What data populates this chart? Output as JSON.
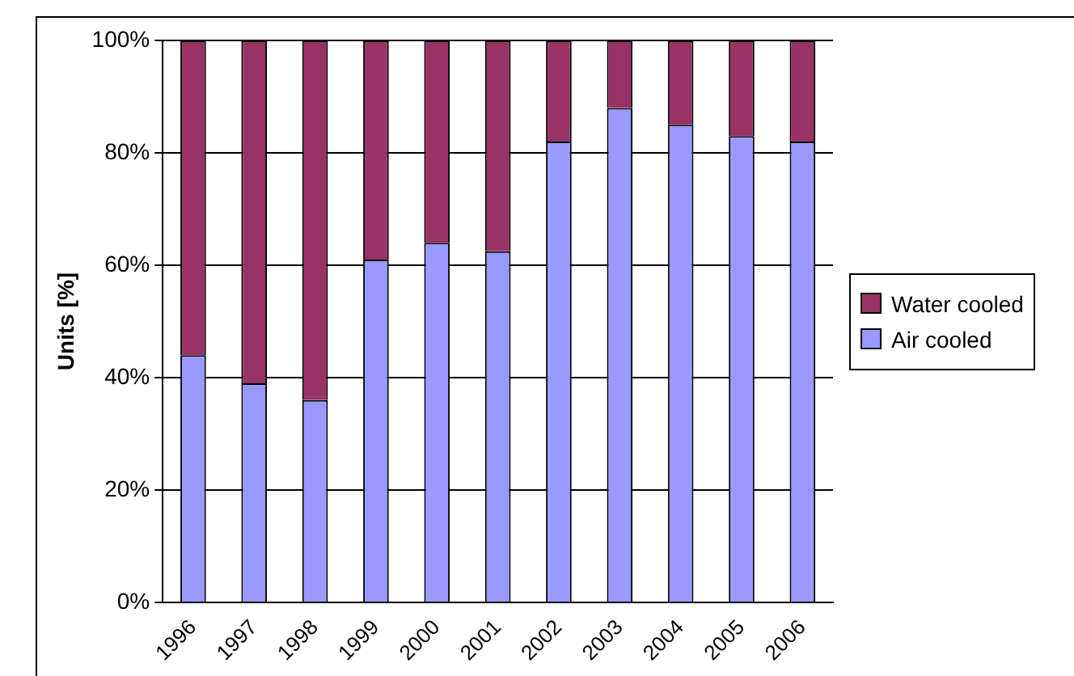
{
  "chart_data": {
    "type": "bar",
    "stacked": true,
    "ylabel": "Units [%]",
    "categories": [
      "1996",
      "1997",
      "1998",
      "1999",
      "2000",
      "2001",
      "2002",
      "2003",
      "2004",
      "2005",
      "2006"
    ],
    "series": [
      {
        "name": "Air cooled",
        "color": "#9999ff",
        "values": [
          44,
          39,
          36,
          61,
          64,
          62.5,
          82,
          88,
          85,
          83,
          82
        ]
      },
      {
        "name": "Water cooled",
        "color": "#993366",
        "values": [
          56,
          61,
          64,
          39,
          36,
          37.5,
          18,
          12,
          15,
          17,
          18
        ]
      }
    ],
    "ylim": [
      0,
      100
    ],
    "yticks": [
      {
        "value": 0,
        "label": "0%"
      },
      {
        "value": 20,
        "label": "20%"
      },
      {
        "value": 40,
        "label": "40%"
      },
      {
        "value": 60,
        "label": "60%"
      },
      {
        "value": 80,
        "label": "80%"
      },
      {
        "value": 100,
        "label": "100%"
      }
    ],
    "grid": "y",
    "legend": "right"
  }
}
